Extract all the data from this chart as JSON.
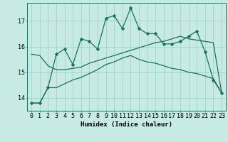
{
  "x": [
    0,
    1,
    2,
    3,
    4,
    5,
    6,
    7,
    8,
    9,
    10,
    11,
    12,
    13,
    14,
    15,
    16,
    17,
    18,
    19,
    20,
    21,
    22,
    23
  ],
  "line1": [
    13.8,
    13.8,
    14.4,
    15.7,
    15.9,
    15.3,
    16.3,
    16.2,
    15.9,
    17.1,
    17.2,
    16.7,
    17.5,
    16.7,
    16.5,
    16.5,
    16.1,
    16.1,
    16.2,
    16.4,
    16.6,
    15.8,
    14.7,
    14.2
  ],
  "line2": [
    13.8,
    13.8,
    14.4,
    14.4,
    14.55,
    14.7,
    14.8,
    14.95,
    15.1,
    15.3,
    15.4,
    15.55,
    15.65,
    15.5,
    15.4,
    15.35,
    15.25,
    15.15,
    15.1,
    15.0,
    14.95,
    14.85,
    14.75,
    14.2
  ],
  "line3": [
    15.7,
    15.65,
    15.25,
    15.1,
    15.1,
    15.15,
    15.2,
    15.35,
    15.45,
    15.55,
    15.65,
    15.75,
    15.85,
    15.95,
    16.05,
    16.15,
    16.2,
    16.3,
    16.4,
    16.3,
    16.25,
    16.2,
    16.15,
    14.2
  ],
  "bg_color": "#c8eae4",
  "grid_color": "#a0d4cc",
  "line_color": "#1a7060",
  "xlabel": "Humidex (Indice chaleur)",
  "yticks": [
    14,
    15,
    16,
    17
  ],
  "xticks": [
    0,
    1,
    2,
    3,
    4,
    5,
    6,
    7,
    8,
    9,
    10,
    11,
    12,
    13,
    14,
    15,
    16,
    17,
    18,
    19,
    20,
    21,
    22,
    23
  ],
  "xlim": [
    -0.5,
    23.5
  ],
  "ylim": [
    13.5,
    17.7
  ],
  "markersize": 2.5,
  "linewidth": 0.9,
  "xlabel_fontsize": 6.5,
  "tick_fontsize": 6.0
}
